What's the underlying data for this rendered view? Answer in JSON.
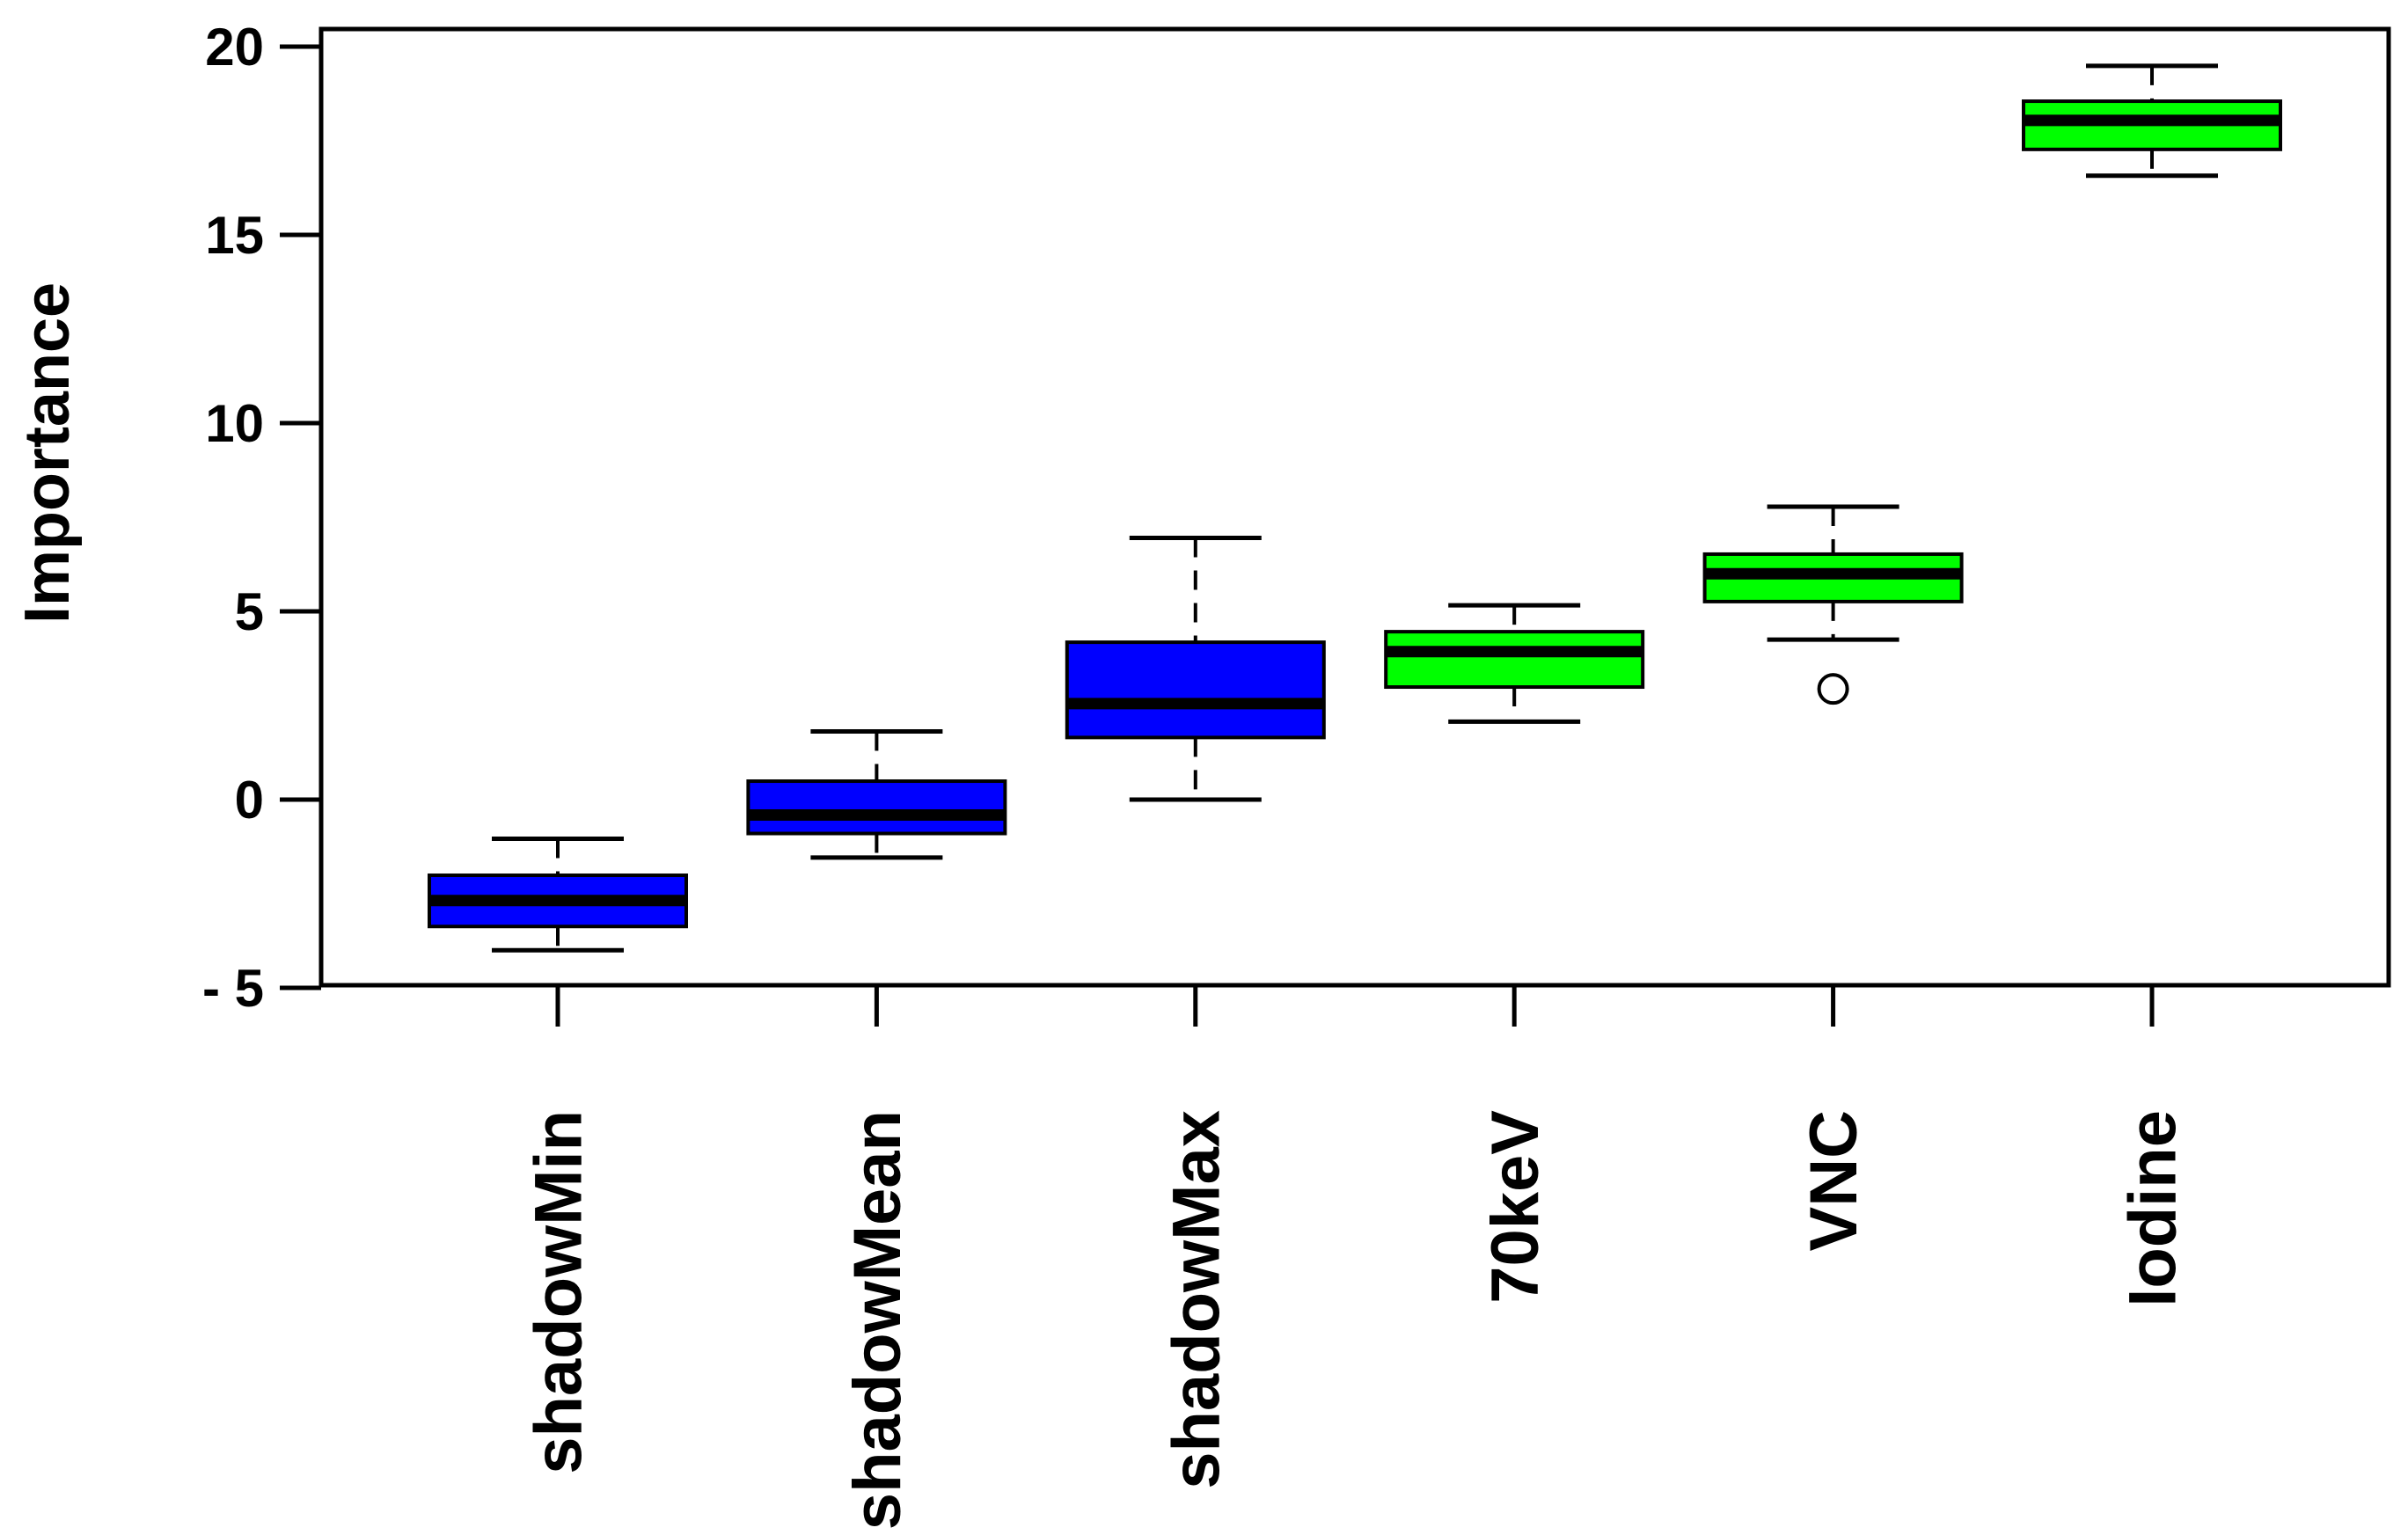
{
  "figure": {
    "background": "#ffffff"
  },
  "chart_data": {
    "type": "boxplot",
    "title": "",
    "xlabel": "",
    "ylabel": "Importance",
    "ylim": [
      -5,
      20
    ],
    "yticks": [
      20,
      15,
      10,
      5,
      0,
      -5
    ],
    "ytick_labels": [
      "20",
      "15",
      "10",
      "5",
      "0",
      "- 5"
    ],
    "grid": false,
    "legend": "none",
    "categories": [
      "shadowMin",
      "shadowMean",
      "shadowMax",
      "70keV",
      "VNC",
      "Iodine"
    ],
    "series": [
      {
        "name": "shadowMin",
        "fill": "#0000ff",
        "whisker_low": -4.0,
        "q1": -3.37,
        "median": -2.68,
        "q3": -2.01,
        "whisker_high": -1.04,
        "outliers": []
      },
      {
        "name": "shadowMean",
        "fill": "#0000ff",
        "whisker_low": -1.54,
        "q1": -0.9,
        "median": -0.41,
        "q3": 0.49,
        "whisker_high": 1.81,
        "outliers": []
      },
      {
        "name": "shadowMax",
        "fill": "#0000ff",
        "whisker_low": 0.0,
        "q1": 1.65,
        "median": 2.55,
        "q3": 4.18,
        "whisker_high": 6.95,
        "outliers": []
      },
      {
        "name": "70keV",
        "fill": "#00ff00",
        "whisker_low": 2.07,
        "q1": 2.99,
        "median": 3.93,
        "q3": 4.46,
        "whisker_high": 5.16,
        "outliers": []
      },
      {
        "name": "VNC",
        "fill": "#00ff00",
        "whisker_low": 4.25,
        "q1": 5.26,
        "median": 6.0,
        "q3": 6.52,
        "whisker_high": 7.78,
        "outliers": [
          2.94
        ]
      },
      {
        "name": "Iodine",
        "fill": "#00ff00",
        "whisker_low": 16.57,
        "q1": 17.27,
        "median": 18.04,
        "q3": 18.55,
        "whisker_high": 19.49,
        "outliers": []
      }
    ],
    "colors": {
      "box_blue": "#0000ff",
      "box_green": "#00ff00",
      "line": "#000000"
    }
  }
}
